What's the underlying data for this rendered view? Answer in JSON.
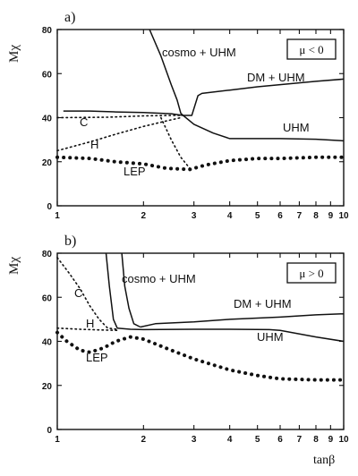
{
  "chart_data": [
    {
      "type": "line",
      "panel_label": "a)",
      "ylabel": "Mχ",
      "xlabel": "",
      "xscale": "log",
      "xlim": [
        1,
        10
      ],
      "ylim": [
        0,
        80
      ],
      "xticks": [
        "1",
        "2",
        "3",
        "4",
        "5",
        "6",
        "7",
        "8",
        "9",
        "10"
      ],
      "yticks": [
        "0",
        "20",
        "40",
        "60",
        "80"
      ],
      "legend_box": "μ < 0",
      "series": [
        {
          "name": "cosmo + UHM",
          "style": "solid",
          "points": [
            [
              2.1,
              80
            ],
            [
              2.3,
              68
            ],
            [
              2.5,
              55
            ],
            [
              2.62,
              48
            ],
            [
              2.7,
              42
            ],
            [
              2.75,
              41
            ]
          ]
        },
        {
          "name": "DM + UHM",
          "style": "solid",
          "points": [
            [
              2.75,
              41
            ],
            [
              2.95,
              41
            ],
            [
              3.1,
              50
            ],
            [
              3.2,
              51
            ],
            [
              4,
              52.5
            ],
            [
              5,
              54
            ],
            [
              6,
              55
            ],
            [
              8,
              56.5
            ],
            [
              10,
              57.5
            ]
          ]
        },
        {
          "name": "UHM",
          "style": "solid",
          "points": [
            [
              1.05,
              43
            ],
            [
              1.3,
              43
            ],
            [
              1.6,
              42.6
            ],
            [
              2,
              42.3
            ],
            [
              2.5,
              41.8
            ],
            [
              2.75,
              41
            ],
            [
              3,
              37
            ],
            [
              3.5,
              33
            ],
            [
              4,
              30.5
            ],
            [
              6,
              30.5
            ],
            [
              8,
              30.2
            ],
            [
              10,
              29.5
            ]
          ]
        },
        {
          "name": "C",
          "style": "dotted",
          "points": [
            [
              1,
              40
            ],
            [
              1.5,
              40.2
            ],
            [
              2,
              40.8
            ],
            [
              2.5,
              41
            ],
            [
              2.75,
              41
            ]
          ]
        },
        {
          "name": "H",
          "style": "dotted",
          "points": [
            [
              1,
              25
            ],
            [
              1.3,
              29
            ],
            [
              1.6,
              32.5
            ],
            [
              2,
              36
            ],
            [
              2.4,
              38.5
            ],
            [
              2.7,
              40
            ]
          ]
        },
        {
          "name": "",
          "style": "dotted",
          "points": [
            [
              2.3,
              40
            ],
            [
              2.5,
              30
            ],
            [
              2.7,
              22
            ],
            [
              2.9,
              17
            ]
          ]
        },
        {
          "name": "LEP",
          "style": "lep",
          "points": [
            [
              1,
              22
            ],
            [
              1.3,
              21.5
            ],
            [
              1.6,
              20
            ],
            [
              2,
              19
            ],
            [
              2.4,
              17
            ],
            [
              2.9,
              16.5
            ],
            [
              3.3,
              18.5
            ],
            [
              4,
              20.5
            ],
            [
              5,
              21.5
            ],
            [
              6,
              21.5
            ],
            [
              8,
              22
            ],
            [
              10,
              22
            ]
          ]
        }
      ],
      "annotations": [
        "cosmo + UHM",
        "DM + UHM",
        "UHM",
        "C",
        "H",
        "LEP"
      ]
    },
    {
      "type": "line",
      "panel_label": "b)",
      "ylabel": "Mχ",
      "xlabel": "tanβ",
      "xscale": "log",
      "xlim": [
        1,
        10
      ],
      "ylim": [
        0,
        80
      ],
      "xticks": [
        "1",
        "2",
        "3",
        "4",
        "5",
        "6",
        "7",
        "8",
        "9",
        "10"
      ],
      "yticks": [
        "0",
        "20",
        "40",
        "60",
        "80"
      ],
      "legend_box": "μ > 0",
      "series": [
        {
          "name": "cosmo + UHM",
          "style": "solid",
          "points": [
            [
              1.48,
              80
            ],
            [
              1.52,
              65
            ],
            [
              1.57,
              50
            ],
            [
              1.62,
              46
            ]
          ]
        },
        {
          "name": "",
          "style": "solid",
          "points": [
            [
              1.68,
              80
            ],
            [
              1.72,
              65
            ],
            [
              1.78,
              55
            ],
            [
              1.85,
              48
            ],
            [
              1.95,
              46.5
            ]
          ]
        },
        {
          "name": "DM + UHM",
          "style": "solid",
          "points": [
            [
              1.95,
              46.5
            ],
            [
              2.2,
              48
            ],
            [
              3,
              48.8
            ],
            [
              4,
              50
            ],
            [
              6,
              51
            ],
            [
              8,
              52
            ],
            [
              10,
              52.5
            ]
          ]
        },
        {
          "name": "UHM",
          "style": "solid",
          "points": [
            [
              1.62,
              46
            ],
            [
              1.8,
              45.5
            ],
            [
              2,
              45.3
            ],
            [
              3,
              45.5
            ],
            [
              4,
              45.5
            ],
            [
              5.5,
              45.3
            ],
            [
              6,
              45
            ],
            [
              8,
              42
            ],
            [
              10,
              40
            ]
          ]
        },
        {
          "name": "C",
          "style": "dotted",
          "points": [
            [
              1,
              78
            ],
            [
              1.1,
              71
            ],
            [
              1.2,
              64
            ],
            [
              1.3,
              56
            ],
            [
              1.4,
              50
            ],
            [
              1.5,
              46
            ],
            [
              1.62,
              45.5
            ]
          ]
        },
        {
          "name": "H",
          "style": "dotted",
          "points": [
            [
              1,
              46
            ],
            [
              1.2,
              45.5
            ],
            [
              1.4,
              45.2
            ],
            [
              1.62,
              45
            ]
          ]
        },
        {
          "name": "LEP",
          "style": "lep",
          "points": [
            [
              1,
              44
            ],
            [
              1.08,
              40
            ],
            [
              1.2,
              36
            ],
            [
              1.3,
              35
            ],
            [
              1.45,
              37
            ],
            [
              1.6,
              40
            ],
            [
              1.8,
              42
            ],
            [
              2,
              41
            ],
            [
              2.5,
              36
            ],
            [
              3,
              32
            ],
            [
              4,
              27
            ],
            [
              5,
              24.5
            ],
            [
              6,
              23
            ],
            [
              8,
              22.5
            ],
            [
              10,
              22.5
            ]
          ]
        }
      ],
      "annotations": [
        "cosmo + UHM",
        "DM + UHM",
        "UHM",
        "C",
        "H",
        "LEP"
      ]
    }
  ]
}
